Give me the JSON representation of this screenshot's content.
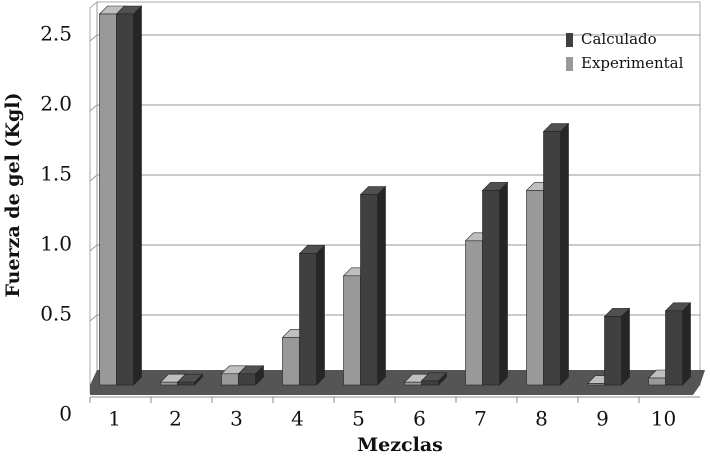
{
  "chart_data": {
    "type": "bar3d",
    "x_label": "Mezclas",
    "y_label": "Fuerza de gel (Kgl)",
    "categories": [
      "1",
      "2",
      "3",
      "4",
      "5",
      "6",
      "7",
      "8",
      "9",
      "10"
    ],
    "series": [
      {
        "name": "Experimental",
        "color": "#999999",
        "values": [
          2.65,
          0.02,
          0.08,
          0.34,
          0.78,
          0.02,
          1.03,
          1.39,
          0.01,
          0.05
        ]
      },
      {
        "name": "Calculado",
        "color": "#404040",
        "values": [
          2.65,
          0.02,
          0.08,
          0.94,
          1.36,
          0.03,
          1.39,
          1.81,
          0.49,
          0.53
        ]
      }
    ],
    "ylim": [
      0,
      2.7
    ],
    "yticks": [
      0,
      0.5,
      {
        "value": 1,
        "label": "1.0"
      },
      1.5,
      {
        "value": 2,
        "label": "2.0"
      },
      2.5
    ],
    "grid": true,
    "legend": "top-right"
  }
}
